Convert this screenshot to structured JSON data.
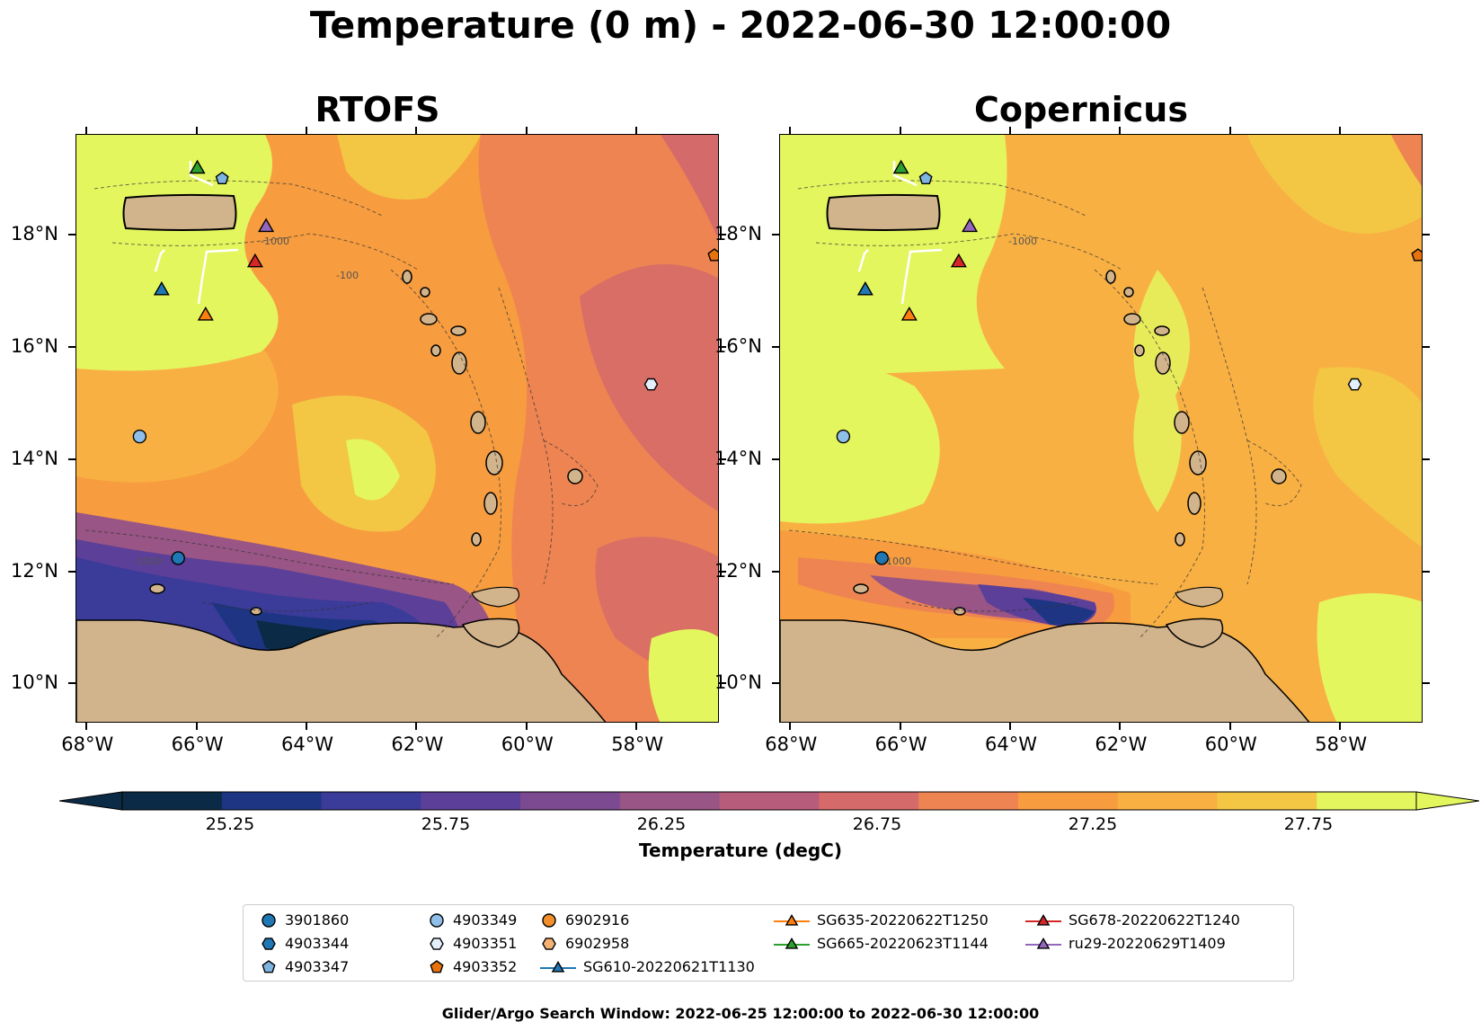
{
  "title": "Temperature (0 m) - 2022-06-30 12:00:00",
  "footer": "Glider/Argo Search Window: 2022-06-25 12:00:00 to 2022-06-30 12:00:00",
  "chart_data": [
    {
      "type": "heatmap",
      "title": "RTOFS",
      "x_ticks": [
        "68°W",
        "66°W",
        "64°W",
        "62°W",
        "60°W",
        "58°W"
      ],
      "y_ticks": [
        "18°N",
        "16°N",
        "14°N",
        "12°N",
        "10°N"
      ],
      "xlim": [
        -68.2,
        -56.5
      ],
      "ylim": [
        9.3,
        19.8
      ],
      "bathymetry_contour_label": "-1000",
      "shelf_contour_label": "-100"
    },
    {
      "type": "heatmap",
      "title": "Copernicus",
      "x_ticks": [
        "68°W",
        "66°W",
        "64°W",
        "62°W",
        "60°W",
        "58°W"
      ],
      "y_ticks": [
        "18°N",
        "16°N",
        "14°N",
        "12°N",
        "10°N"
      ],
      "xlim": [
        -68.2,
        -56.5
      ],
      "ylim": [
        9.3,
        19.8
      ],
      "bathymetry_contour_label": "-1000"
    }
  ],
  "colorbar": {
    "title": "Temperature (degC)",
    "ticks": [
      "25.25",
      "25.75",
      "26.25",
      "26.75",
      "27.25",
      "27.75"
    ],
    "range": [
      25.0,
      28.0
    ],
    "colors": [
      "#0b2a45",
      "#1d3582",
      "#3b3b9a",
      "#5b3f98",
      "#7b4a90",
      "#985585",
      "#b85c7c",
      "#d56a6a",
      "#ee8452",
      "#f79c3f",
      "#f9b043",
      "#f3c644",
      "#e4f65e"
    ]
  },
  "legend": [
    {
      "label": "3901860",
      "marker": "circle",
      "color": "#1f77b4"
    },
    {
      "label": "4903344",
      "marker": "hexagon",
      "color": "#1f77b4"
    },
    {
      "label": "4903347",
      "marker": "pentagon",
      "color": "#7fb3e0"
    },
    {
      "label": "4903349",
      "marker": "circle",
      "color": "#8fbfe8"
    },
    {
      "label": "4903351",
      "marker": "hexagon",
      "color": "#e3f0fb"
    },
    {
      "label": "4903352",
      "marker": "pentagon",
      "color": "#e8730e"
    },
    {
      "label": "6902916",
      "marker": "circle",
      "color": "#f28e2b"
    },
    {
      "label": "6902958",
      "marker": "hexagon",
      "color": "#f5b074"
    },
    {
      "label": "SG610-20220621T1130",
      "marker": "triangle",
      "color": "#1f77b4"
    },
    {
      "label": "SG635-20220622T1250",
      "marker": "triangle",
      "color": "#ff7f0e"
    },
    {
      "label": "SG665-20220623T1144",
      "marker": "triangle",
      "color": "#2ca02c"
    },
    {
      "label": "SG678-20220622T1240",
      "marker": "triangle",
      "color": "#d62728"
    },
    {
      "label": "ru29-20220629T1409",
      "marker": "triangle",
      "color": "#9467bd"
    }
  ],
  "observations": [
    {
      "id": "SG665-20220623T1144",
      "lon": -66.0,
      "lat": 19.22,
      "marker": "triangle",
      "color": "#2ca02c"
    },
    {
      "id": "4903347",
      "lon": -65.55,
      "lat": 19.02,
      "marker": "pentagon",
      "color": "#7fb3e0"
    },
    {
      "id": "ru29-20220629T1409",
      "lon": -64.75,
      "lat": 18.18,
      "marker": "triangle",
      "color": "#9467bd"
    },
    {
      "id": "SG678-20220622T1240",
      "lon": -64.95,
      "lat": 17.55,
      "marker": "triangle",
      "color": "#d62728"
    },
    {
      "id": "SG610-20220621T1130",
      "lon": -66.65,
      "lat": 17.05,
      "marker": "triangle",
      "color": "#1f77b4"
    },
    {
      "id": "SG635-20220622T1250",
      "lon": -65.85,
      "lat": 16.6,
      "marker": "triangle",
      "color": "#ff7f0e"
    },
    {
      "id": "4903352",
      "lon": -56.6,
      "lat": 17.65,
      "marker": "pentagon",
      "color": "#e8730e"
    },
    {
      "id": "4903351",
      "lon": -57.75,
      "lat": 15.35,
      "marker": "hexagon",
      "color": "#e3f0fb"
    },
    {
      "id": "4903349",
      "lon": -67.05,
      "lat": 14.42,
      "marker": "circle",
      "color": "#8fbfe8"
    },
    {
      "id": "3901860",
      "lon": -66.35,
      "lat": 12.25,
      "marker": "circle",
      "color": "#1f77b4"
    }
  ]
}
